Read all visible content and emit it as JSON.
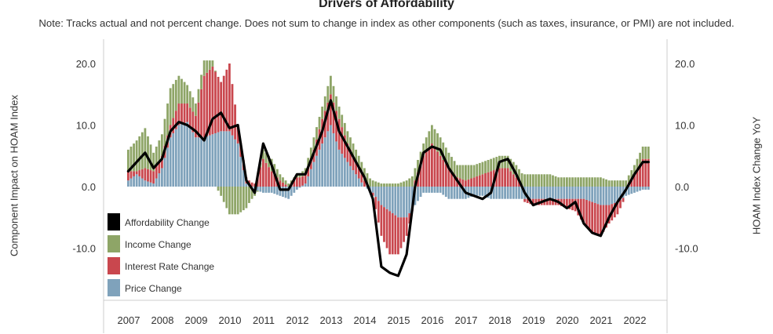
{
  "chart_data": {
    "type": "bar",
    "title": "Drivers of Affordability",
    "subtitle": "Note: Tracks actual and not percent change. Does not sum to change in index as other components (such as taxes, insurance, or PMI) are not included.",
    "ylabel_left": "Component Impact on HOAM Index",
    "ylabel_right": "HOAM Index Change YoY",
    "ylim": [
      -18,
      22
    ],
    "yticks": [
      "20.0",
      "10.0",
      "0.0",
      "-10.0"
    ],
    "ytick_values": [
      20,
      10,
      0,
      -10
    ],
    "xticks": [
      "2007",
      "2008",
      "2009",
      "2010",
      "2011",
      "2012",
      "2013",
      "2014",
      "2015",
      "2016",
      "2017",
      "2018",
      "2019",
      "2020",
      "2021",
      "2022"
    ],
    "legend": [
      "Affordability Change",
      "Income Change",
      "Interest Rate Change",
      "Price Change"
    ],
    "legend_placement": "bottom-left",
    "colors": {
      "affordability": "#000000",
      "income": "#8ea567",
      "interest": "#c9474e",
      "price": "#7fa2bb"
    },
    "quarters": [
      {
        "t": "2007Q1",
        "price": 1.0,
        "interest": 1.5,
        "income": 3.5,
        "afford": 2.5
      },
      {
        "t": "2007Q2",
        "price": 2.0,
        "interest": 0.5,
        "income": 5.0,
        "afford": 4.0
      },
      {
        "t": "2007Q3",
        "price": 1.0,
        "interest": 2.0,
        "income": 6.5,
        "afford": 5.5
      },
      {
        "t": "2007Q4",
        "price": 0.5,
        "interest": 2.0,
        "income": 3.0,
        "afford": 3.0
      },
      {
        "t": "2008Q1",
        "price": 3.0,
        "interest": 2.0,
        "income": 3.5,
        "afford": 4.5
      },
      {
        "t": "2008Q2",
        "price": 8.0,
        "interest": 2.0,
        "income": 6.0,
        "afford": 9.0
      },
      {
        "t": "2008Q3",
        "price": 10.0,
        "interest": 3.5,
        "income": 4.5,
        "afford": 10.5
      },
      {
        "t": "2008Q4",
        "price": 10.5,
        "interest": 3.0,
        "income": 3.0,
        "afford": 10.0
      },
      {
        "t": "2009Q1",
        "price": 8.0,
        "interest": 3.5,
        "income": 2.0,
        "afford": 9.0
      },
      {
        "t": "2009Q2",
        "price": 8.0,
        "interest": 10.0,
        "income": 2.5,
        "afford": 7.5
      },
      {
        "t": "2009Q3",
        "price": 8.5,
        "interest": 11.0,
        "income": 1.0,
        "afford": 11.0
      },
      {
        "t": "2009Q4",
        "price": 9.0,
        "interest": 8.0,
        "income": -1.5,
        "afford": 12.0
      },
      {
        "t": "2010Q1",
        "price": 9.0,
        "interest": 11.0,
        "income": -4.5,
        "afford": 9.5
      },
      {
        "t": "2010Q2",
        "price": 7.0,
        "interest": 3.0,
        "income": -4.5,
        "afford": 10.0
      },
      {
        "t": "2010Q3",
        "price": 0.5,
        "interest": 1.0,
        "income": -3.5,
        "afford": 1.0
      },
      {
        "t": "2010Q4",
        "price": -0.5,
        "interest": 0.5,
        "income": -1.0,
        "afford": -1.0
      },
      {
        "t": "2011Q1",
        "price": -1.0,
        "interest": 4.5,
        "income": 1.5,
        "afford": 7.0
      },
      {
        "t": "2011Q2",
        "price": -1.0,
        "interest": 2.5,
        "income": 2.0,
        "afford": 3.5
      },
      {
        "t": "2011Q3",
        "price": -1.5,
        "interest": 1.0,
        "income": 1.0,
        "afford": -0.5
      },
      {
        "t": "2011Q4",
        "price": -2.0,
        "interest": 0.0,
        "income": 0.5,
        "afford": -0.5
      },
      {
        "t": "2012Q1",
        "price": -0.5,
        "interest": 1.5,
        "income": 0.5,
        "afford": 2.0
      },
      {
        "t": "2012Q2",
        "price": 0.5,
        "interest": 1.5,
        "income": 1.0,
        "afford": 2.0
      },
      {
        "t": "2012Q3",
        "price": 4.0,
        "interest": 2.0,
        "income": 2.0,
        "afford": 5.5
      },
      {
        "t": "2012Q4",
        "price": 7.0,
        "interest": 4.0,
        "income": 2.0,
        "afford": 9.0
      },
      {
        "t": "2013Q1",
        "price": 10.0,
        "interest": 5.0,
        "income": 3.0,
        "afford": 14.0
      },
      {
        "t": "2013Q2",
        "price": 6.0,
        "interest": 5.0,
        "income": 2.0,
        "afford": 9.0
      },
      {
        "t": "2013Q3",
        "price": 4.0,
        "interest": 3.0,
        "income": 2.0,
        "afford": 6.5
      },
      {
        "t": "2013Q4",
        "price": 2.0,
        "interest": 2.0,
        "income": 2.0,
        "afford": 4.0
      },
      {
        "t": "2014Q1",
        "price": 0.0,
        "interest": 1.0,
        "income": 2.0,
        "afford": 1.5
      },
      {
        "t": "2014Q2",
        "price": -1.0,
        "interest": -0.5,
        "income": 1.0,
        "afford": -2.0
      },
      {
        "t": "2014Q3",
        "price": -3.0,
        "interest": -5.0,
        "income": 0.5,
        "afford": -13.0
      },
      {
        "t": "2014Q4",
        "price": -4.0,
        "interest": -7.0,
        "income": 0.5,
        "afford": -14.0
      },
      {
        "t": "2015Q1",
        "price": -5.0,
        "interest": -6.0,
        "income": 0.5,
        "afford": -14.5
      },
      {
        "t": "2015Q2",
        "price": -5.0,
        "interest": -3.0,
        "income": 1.0,
        "afford": -11.0
      },
      {
        "t": "2015Q3",
        "price": -3.0,
        "interest": 1.0,
        "income": 2.0,
        "afford": 0.0
      },
      {
        "t": "2015Q4",
        "price": -1.0,
        "interest": 5.0,
        "income": 2.0,
        "afford": 5.5
      },
      {
        "t": "2016Q1",
        "price": -1.0,
        "interest": 7.0,
        "income": 3.0,
        "afford": 6.5
      },
      {
        "t": "2016Q2",
        "price": -1.0,
        "interest": 5.0,
        "income": 3.0,
        "afford": 6.0
      },
      {
        "t": "2016Q3",
        "price": -2.0,
        "interest": 3.0,
        "income": 2.5,
        "afford": 3.0
      },
      {
        "t": "2016Q4",
        "price": -2.0,
        "interest": 1.5,
        "income": 2.0,
        "afford": 1.0
      },
      {
        "t": "2017Q1",
        "price": -2.0,
        "interest": 1.0,
        "income": 2.5,
        "afford": -1.0
      },
      {
        "t": "2017Q2",
        "price": -1.5,
        "interest": 1.5,
        "income": 2.0,
        "afford": -1.5
      },
      {
        "t": "2017Q3",
        "price": -1.5,
        "interest": 2.0,
        "income": 2.0,
        "afford": -2.0
      },
      {
        "t": "2017Q4",
        "price": -2.0,
        "interest": 2.5,
        "income": 2.0,
        "afford": -1.0
      },
      {
        "t": "2018Q1",
        "price": -2.0,
        "interest": 3.0,
        "income": 2.0,
        "afford": 4.0
      },
      {
        "t": "2018Q2",
        "price": -2.0,
        "interest": 3.0,
        "income": 2.0,
        "afford": 4.5
      },
      {
        "t": "2018Q3",
        "price": -2.0,
        "interest": 1.5,
        "income": 2.0,
        "afford": 2.0
      },
      {
        "t": "2018Q4",
        "price": -2.0,
        "interest": -0.5,
        "income": 2.0,
        "afford": -1.0
      },
      {
        "t": "2019Q1",
        "price": -2.0,
        "interest": -1.0,
        "income": 2.0,
        "afford": -3.0
      },
      {
        "t": "2019Q2",
        "price": -2.0,
        "interest": -1.0,
        "income": 2.0,
        "afford": -2.5
      },
      {
        "t": "2019Q3",
        "price": -2.0,
        "interest": -1.0,
        "income": 2.0,
        "afford": -2.0
      },
      {
        "t": "2019Q4",
        "price": -2.0,
        "interest": -1.0,
        "income": 1.5,
        "afford": -2.5
      },
      {
        "t": "2020Q1",
        "price": -2.0,
        "interest": -1.5,
        "income": 1.5,
        "afford": -3.5
      },
      {
        "t": "2020Q2",
        "price": -2.0,
        "interest": -2.0,
        "income": 1.5,
        "afford": -2.5
      },
      {
        "t": "2020Q3",
        "price": -2.0,
        "interest": -4.0,
        "income": 1.5,
        "afford": -6.0
      },
      {
        "t": "2020Q4",
        "price": -2.5,
        "interest": -5.0,
        "income": 1.5,
        "afford": -7.5
      },
      {
        "t": "2021Q1",
        "price": -3.0,
        "interest": -5.0,
        "income": 1.5,
        "afford": -8.0
      },
      {
        "t": "2021Q2",
        "price": -3.0,
        "interest": -3.0,
        "income": 1.0,
        "afford": -5.0
      },
      {
        "t": "2021Q3",
        "price": -2.5,
        "interest": -2.0,
        "income": 1.0,
        "afford": -2.5
      },
      {
        "t": "2021Q4",
        "price": -1.5,
        "interest": 0.0,
        "income": 1.0,
        "afford": -0.5
      },
      {
        "t": "2022Q1",
        "price": -1.0,
        "interest": 2.0,
        "income": 1.5,
        "afford": 2.0
      },
      {
        "t": "2022Q2",
        "price": -0.5,
        "interest": 4.5,
        "income": 2.0,
        "afford": 4.0
      }
    ]
  }
}
